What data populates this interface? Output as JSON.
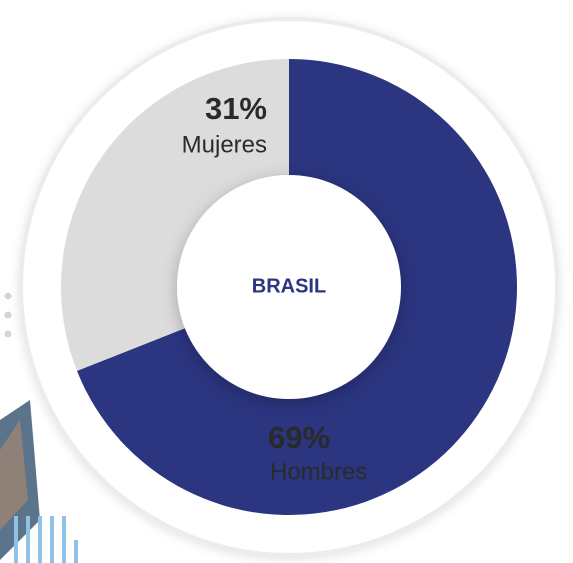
{
  "chart_data": {
    "type": "pie",
    "donut": true,
    "center_label": "BRASIL",
    "categories": [
      "Hombres",
      "Mujeres"
    ],
    "values": [
      69,
      31
    ],
    "value_labels": [
      "69%",
      "31%"
    ],
    "colors": [
      "#2b3580",
      "#dcdcdc"
    ]
  }
}
